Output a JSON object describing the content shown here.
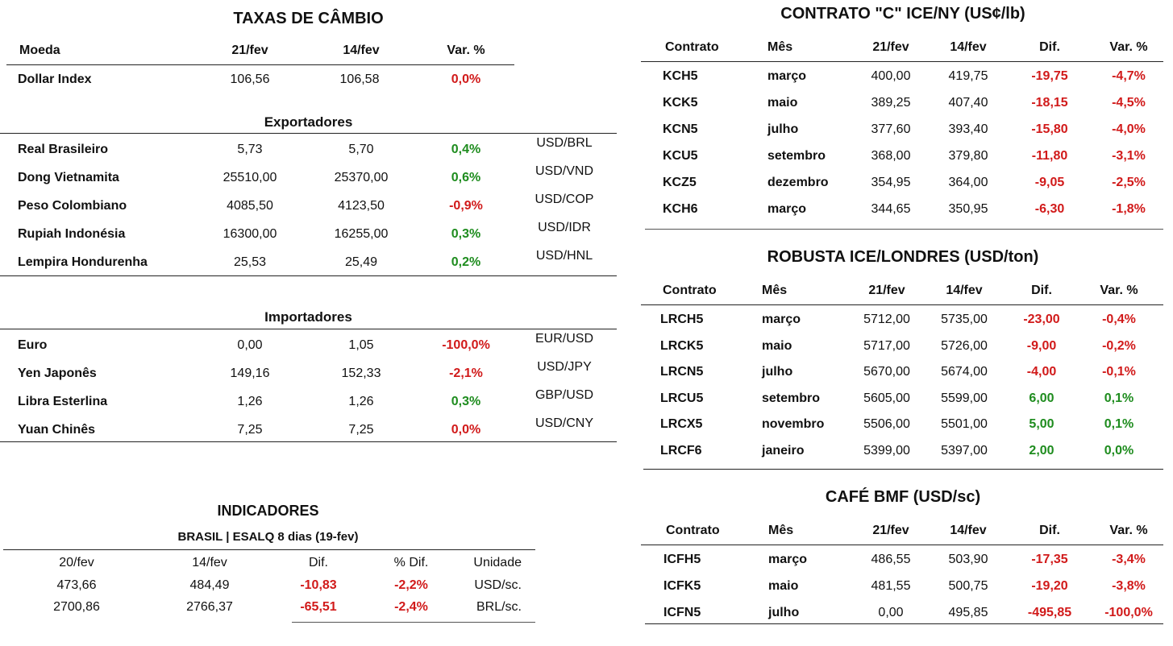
{
  "fx": {
    "title": "TAXAS DE CÂMBIO",
    "headers": [
      "Moeda",
      "21/fev",
      "14/fev",
      "Var. %"
    ],
    "dollar_index": {
      "name": "Dollar Index",
      "v1": "106,56",
      "v2": "106,58",
      "var": "0,0%",
      "sign": "neg"
    },
    "exportadores_label": "Exportadores",
    "exportadores": [
      {
        "name": "Real Brasileiro",
        "v1": "5,73",
        "v2": "5,70",
        "var": "0,4%",
        "sign": "pos",
        "pair": "USD/BRL"
      },
      {
        "name": "Dong Vietnamita",
        "v1": "25510,00",
        "v2": "25370,00",
        "var": "0,6%",
        "sign": "pos",
        "pair": "USD/VND"
      },
      {
        "name": "Peso Colombiano",
        "v1": "4085,50",
        "v2": "4123,50",
        "var": "-0,9%",
        "sign": "neg",
        "pair": "USD/COP"
      },
      {
        "name": "Rupiah Indonésia",
        "v1": "16300,00",
        "v2": "16255,00",
        "var": "0,3%",
        "sign": "pos",
        "pair": "USD/IDR"
      },
      {
        "name": "Lempira Hondurenha",
        "v1": "25,53",
        "v2": "25,49",
        "var": "0,2%",
        "sign": "pos",
        "pair": "USD/HNL"
      }
    ],
    "importadores_label": "Importadores",
    "importadores": [
      {
        "name": "Euro",
        "v1": "0,00",
        "v2": "1,05",
        "var": "-100,0%",
        "sign": "neg",
        "pair": "EUR/USD"
      },
      {
        "name": "Yen Japonês",
        "v1": "149,16",
        "v2": "152,33",
        "var": "-2,1%",
        "sign": "neg",
        "pair": "USD/JPY"
      },
      {
        "name": "Libra Esterlina",
        "v1": "1,26",
        "v2": "1,26",
        "var": "0,3%",
        "sign": "pos",
        "pair": "GBP/USD"
      },
      {
        "name": "Yuan Chinês",
        "v1": "7,25",
        "v2": "7,25",
        "var": "0,0%",
        "sign": "neg",
        "pair": "USD/CNY"
      }
    ]
  },
  "indicadores": {
    "title": "INDICADORES",
    "subtitle": "BRASIL | ESALQ 8 dias (19-fev)",
    "headers": [
      "20/fev",
      "14/fev",
      "Dif.",
      "% Dif.",
      "Unidade"
    ],
    "rows": [
      {
        "v1": "473,66",
        "v2": "484,49",
        "dif": "-10,83",
        "pdif": "-2,2%",
        "unit": "USD/sc."
      },
      {
        "v1": "2700,86",
        "v2": "2766,37",
        "dif": "-65,51",
        "pdif": "-2,4%",
        "unit": "BRL/sc."
      }
    ]
  },
  "ice_ny": {
    "title": "CONTRATO \"C\" ICE/NY (US¢/lb)",
    "headers": [
      "Contrato",
      "Mês",
      "21/fev",
      "14/fev",
      "Dif.",
      "Var. %"
    ],
    "rows": [
      {
        "c": "KCH5",
        "m": "março",
        "v1": "400,00",
        "v2": "419,75",
        "dif": "-19,75",
        "var": "-4,7%",
        "sign": "neg"
      },
      {
        "c": "KCK5",
        "m": "maio",
        "v1": "389,25",
        "v2": "407,40",
        "dif": "-18,15",
        "var": "-4,5%",
        "sign": "neg"
      },
      {
        "c": "KCN5",
        "m": "julho",
        "v1": "377,60",
        "v2": "393,40",
        "dif": "-15,80",
        "var": "-4,0%",
        "sign": "neg"
      },
      {
        "c": "KCU5",
        "m": "setembro",
        "v1": "368,00",
        "v2": "379,80",
        "dif": "-11,80",
        "var": "-3,1%",
        "sign": "neg"
      },
      {
        "c": "KCZ5",
        "m": "dezembro",
        "v1": "354,95",
        "v2": "364,00",
        "dif": "-9,05",
        "var": "-2,5%",
        "sign": "neg"
      },
      {
        "c": "KCH6",
        "m": "março",
        "v1": "344,65",
        "v2": "350,95",
        "dif": "-6,30",
        "var": "-1,8%",
        "sign": "neg"
      }
    ]
  },
  "robusta": {
    "title": "ROBUSTA ICE/LONDRES (USD/ton)",
    "headers": [
      "Contrato",
      "Mês",
      "21/fev",
      "14/fev",
      "Dif.",
      "Var. %"
    ],
    "rows": [
      {
        "c": "LRCH5",
        "m": "março",
        "v1": "5712,00",
        "v2": "5735,00",
        "dif": "-23,00",
        "var": "-0,4%",
        "sign": "neg"
      },
      {
        "c": "LRCK5",
        "m": "maio",
        "v1": "5717,00",
        "v2": "5726,00",
        "dif": "-9,00",
        "var": "-0,2%",
        "sign": "neg"
      },
      {
        "c": "LRCN5",
        "m": "julho",
        "v1": "5670,00",
        "v2": "5674,00",
        "dif": "-4,00",
        "var": "-0,1%",
        "sign": "neg"
      },
      {
        "c": "LRCU5",
        "m": "setembro",
        "v1": "5605,00",
        "v2": "5599,00",
        "dif": "6,00",
        "var": "0,1%",
        "sign": "pos"
      },
      {
        "c": "LRCX5",
        "m": "novembro",
        "v1": "5506,00",
        "v2": "5501,00",
        "dif": "5,00",
        "var": "0,1%",
        "sign": "pos"
      },
      {
        "c": "LRCF6",
        "m": "janeiro",
        "v1": "5399,00",
        "v2": "5397,00",
        "dif": "2,00",
        "var": "0,0%",
        "sign": "pos"
      }
    ]
  },
  "bmf": {
    "title": "CAFÉ BMF (USD/sc)",
    "headers": [
      "Contrato",
      "Mês",
      "21/fev",
      "14/fev",
      "Dif.",
      "Var. %"
    ],
    "rows": [
      {
        "c": "ICFH5",
        "m": "março",
        "v1": "486,55",
        "v2": "503,90",
        "dif": "-17,35",
        "var": "-3,4%",
        "sign": "neg"
      },
      {
        "c": "ICFK5",
        "m": "maio",
        "v1": "481,55",
        "v2": "500,75",
        "dif": "-19,20",
        "var": "-3,8%",
        "sign": "neg"
      },
      {
        "c": "ICFN5",
        "m": "julho",
        "v1": "0,00",
        "v2": "495,85",
        "dif": "-495,85",
        "var": "-100,0%",
        "sign": "neg"
      }
    ]
  },
  "colors": {
    "negative": "#d11a1a",
    "positive": "#1e8c1e"
  }
}
